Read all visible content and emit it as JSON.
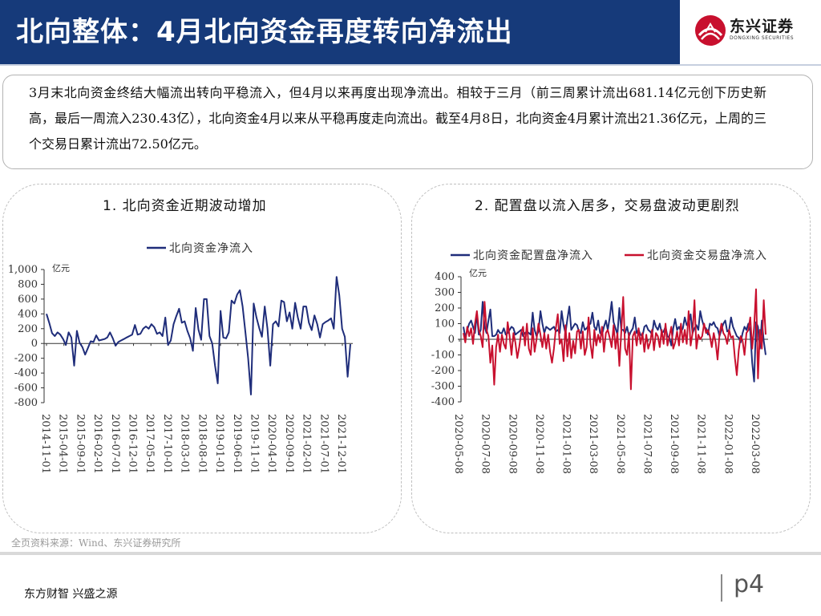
{
  "header": {
    "title": "北向整体：4月北向资金再度转向净流出",
    "logo": {
      "name_cn": "东兴证券",
      "name_en": "DONGXING SECURITIES",
      "color": "#c8102e"
    }
  },
  "summary": {
    "text": "3月末北向资金终结大幅流出转向平稳流入，但4月以来再度出现净流出。相较于三月（前三周累计流出681.14亿元创下历史新高，最后一周流入230.43亿），北向资金4月以来从平稳再度走向流出。截至4月8日，北向资金4月累计流出21.36亿元，上周的三个交易日累计流出72.50亿元。"
  },
  "colors": {
    "header_bg": "#163a7a",
    "navy_series": "#1f2d7a",
    "red_series": "#c8102e"
  },
  "chart_data": [
    {
      "type": "line",
      "title": "1. 北向资金近期波动增加",
      "unit_label": "亿元",
      "ylim": [
        -800,
        1000
      ],
      "yticks": [
        -800,
        -600,
        -400,
        -200,
        0,
        200,
        400,
        600,
        800,
        1000
      ],
      "ytick_labels": [
        "-800",
        "-600",
        "-400",
        "-200",
        "0",
        "200",
        "400",
        "600",
        "800",
        "1,000"
      ],
      "x_tick_labels": [
        "2014-11-01",
        "2015-04-01",
        "2015-09-01",
        "2016-02-01",
        "2016-07-01",
        "2016-12-01",
        "2017-05-01",
        "2017-10-01",
        "2018-03-01",
        "2018-08-01",
        "2019-01-01",
        "2019-06-01",
        "2019-11-01",
        "2020-04-01",
        "2020-09-01",
        "2021-02-01",
        "2021-07-01",
        "2021-12-01"
      ],
      "grid": false,
      "legend_position": "top",
      "series": [
        {
          "name": "北向资金净流入",
          "color": "#1f2d7a",
          "values": [
            400,
            280,
            140,
            100,
            150,
            120,
            60,
            -20,
            150,
            80,
            -300,
            170,
            10,
            -50,
            -150,
            -60,
            30,
            20,
            110,
            40,
            50,
            60,
            80,
            150,
            70,
            -30,
            20,
            40,
            60,
            80,
            100,
            120,
            250,
            120,
            130,
            200,
            230,
            200,
            260,
            220,
            130,
            150,
            100,
            350,
            -20,
            40,
            260,
            370,
            470,
            280,
            300,
            170,
            70,
            -100,
            480,
            190,
            50,
            600,
            600,
            100,
            0,
            -300,
            -540,
            440,
            80,
            70,
            150,
            580,
            540,
            660,
            720,
            500,
            150,
            -200,
            -690,
            540,
            350,
            210,
            90,
            500,
            200,
            -300,
            260,
            300,
            230,
            580,
            560,
            300,
            420,
            200,
            550,
            350,
            200,
            500,
            500,
            280,
            180,
            380,
            260,
            80,
            260,
            290,
            310,
            340,
            200,
            900,
            650,
            200,
            90,
            -450,
            -10
          ]
        }
      ]
    },
    {
      "type": "line",
      "title": "2. 配置盘以流入居多，交易盘波动更剧烈",
      "unit_label": "亿元",
      "ylim": [
        -400,
        400
      ],
      "yticks": [
        -400,
        -300,
        -200,
        -100,
        0,
        100,
        200,
        300,
        400
      ],
      "ytick_labels": [
        "-400",
        "-300",
        "-200",
        "-100",
        "0",
        "100",
        "200",
        "300",
        "400"
      ],
      "x_tick_labels": [
        "2020-05-08",
        "2020-07-08",
        "2020-09-08",
        "2020-11-08",
        "2021-01-08",
        "2021-03-08",
        "2021-05-08",
        "2021-07-08",
        "2021-09-08",
        "2021-11-08",
        "2022-01-08",
        "2022-03-08"
      ],
      "grid": false,
      "legend_position": "top",
      "series": [
        {
          "name": "北向资金配置盘净流入",
          "color": "#1f2d7a",
          "values": [
            80,
            10,
            60,
            100,
            120,
            80,
            40,
            160,
            30,
            60,
            240,
            80,
            40,
            120,
            190,
            20,
            20,
            30,
            60,
            40,
            40,
            70,
            30,
            40,
            60,
            80,
            70,
            30,
            40,
            50,
            60,
            20,
            40,
            50,
            40,
            30,
            170,
            60,
            20,
            50,
            180,
            100,
            40,
            80,
            70,
            60,
            70,
            80,
            50,
            60,
            40,
            180,
            90,
            40,
            130,
            210,
            60,
            80,
            100,
            90,
            50,
            40,
            110,
            60,
            70,
            90,
            100,
            170,
            80,
            60,
            120,
            40,
            30,
            80,
            120,
            60,
            140,
            240,
            110,
            70,
            30,
            200,
            60,
            60,
            40,
            80,
            20,
            50,
            70,
            140,
            40,
            60,
            30,
            20,
            80,
            90,
            60,
            50,
            30,
            120,
            80,
            60,
            100,
            40,
            50,
            80,
            20,
            10,
            -40,
            70,
            130,
            60,
            80,
            50,
            70,
            140,
            90,
            100,
            160,
            40,
            70,
            90,
            60,
            180,
            120,
            80,
            70,
            30,
            100,
            90,
            110,
            80,
            70,
            20,
            60,
            100,
            120,
            50,
            60,
            140,
            80,
            50,
            20,
            10,
            -20,
            40,
            80,
            60,
            100,
            50,
            -150,
            -270,
            110,
            80,
            -60,
            120,
            -10,
            -100
          ]
        },
        {
          "name": "北向资金交易盘净流入",
          "color": "#c8102e",
          "values": [
            40,
            -20,
            80,
            20,
            70,
            -30,
            100,
            180,
            60,
            20,
            -50,
            240,
            60,
            20,
            -150,
            -40,
            -290,
            -50,
            30,
            -80,
            30,
            -30,
            -60,
            110,
            20,
            -100,
            40,
            -20,
            -120,
            -50,
            40,
            80,
            -40,
            100,
            -60,
            -100,
            70,
            -80,
            0,
            100,
            30,
            -50,
            40,
            -60,
            30,
            -80,
            -150,
            -60,
            70,
            160,
            -30,
            0,
            -140,
            90,
            -110,
            40,
            -120,
            -10,
            -90,
            50,
            60,
            -60,
            50,
            -100,
            -50,
            140,
            -30,
            -120,
            60,
            -40,
            30,
            -20,
            80,
            -80,
            40,
            60,
            10,
            -50,
            90,
            -60,
            40,
            -170,
            50,
            270,
            -60,
            -100,
            40,
            -320,
            20,
            50,
            -40,
            70,
            -30,
            40,
            -80,
            30,
            -60,
            -20,
            60,
            -70,
            40,
            20,
            -50,
            60,
            -30,
            100,
            -40,
            20,
            80,
            -60,
            -20,
            50,
            -40,
            100,
            -20,
            60,
            -30,
            180,
            -40,
            40,
            250,
            -60,
            30,
            0,
            20,
            100,
            40,
            60,
            20,
            -50,
            40,
            -20,
            -130,
            30,
            100,
            40,
            20,
            -30,
            60,
            10,
            20,
            -120,
            -230,
            -70,
            20,
            -10,
            -100,
            40,
            60,
            140,
            -60,
            80,
            320,
            -250,
            60,
            -60,
            250,
            30
          ]
        }
      ]
    }
  ],
  "source_note": "全页资料来源：Wind、东兴证券研究所",
  "footer": {
    "tagline": "东方财智 兴盛之源",
    "page_number": "p4"
  }
}
